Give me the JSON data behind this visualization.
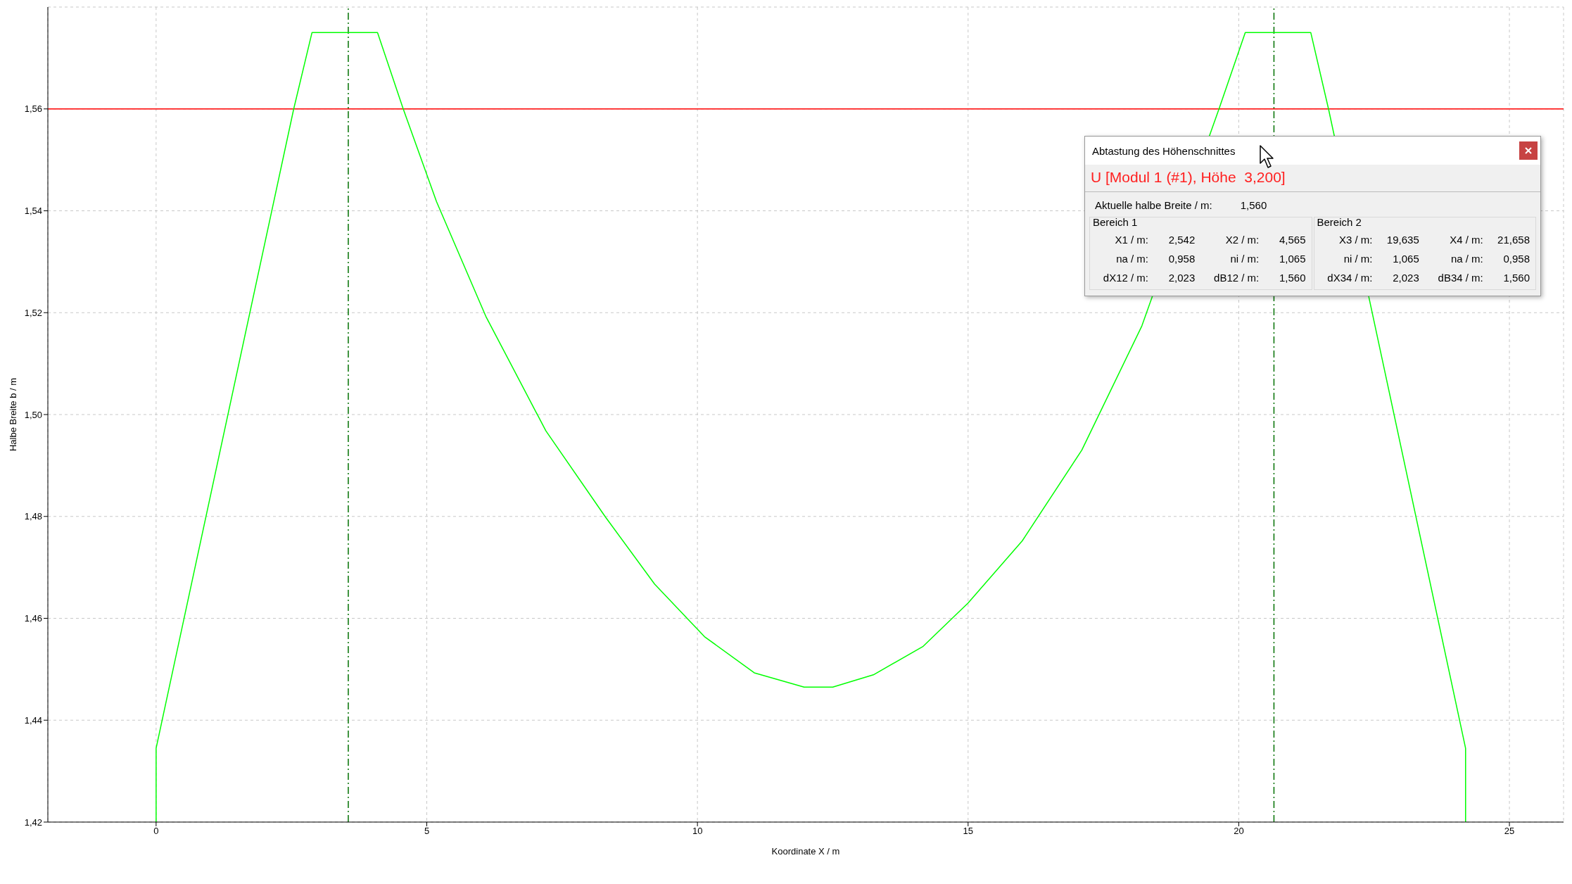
{
  "chart_data": {
    "type": "line",
    "xlabel": "Koordinate X / m",
    "ylabel": "Halbe Breite b / m",
    "xlim": [
      -2,
      26
    ],
    "xticks": [
      0,
      5,
      10,
      15,
      20,
      25
    ],
    "ylim": [
      1.42,
      1.58
    ],
    "yticks": [
      {
        "value": 1.42,
        "label": "1,42"
      },
      {
        "value": 1.44,
        "label": "1,44"
      },
      {
        "value": 1.46,
        "label": "1,46"
      },
      {
        "value": 1.48,
        "label": "1,48"
      },
      {
        "value": 1.5,
        "label": "1,50"
      },
      {
        "value": 1.52,
        "label": "1,52"
      },
      {
        "value": 1.54,
        "label": "1,54"
      },
      {
        "value": 1.56,
        "label": "1,56"
      }
    ],
    "grid": true,
    "marker": "none",
    "line_style": "solid",
    "series": [
      {
        "color": "#00ff00",
        "x": [
          0,
          0,
          2.542,
          2.88,
          4.09,
          4.565,
          5.18,
          6.09,
          7.2,
          8.3,
          9.21,
          10.13,
          11.05,
          11.97,
          12.5,
          13.25,
          14.17,
          15.0,
          16.0,
          17.1,
          18.21,
          19.635,
          20.12,
          21.33,
          21.658,
          24.19,
          24.19
        ],
        "values": [
          1.42,
          1.4345,
          1.56,
          1.575,
          1.575,
          1.56,
          1.5418,
          1.5193,
          1.4968,
          1.4799,
          1.4667,
          1.4564,
          1.4493,
          1.4465,
          1.4465,
          1.4489,
          1.4545,
          1.463,
          1.4752,
          1.493,
          1.5174,
          1.56,
          1.575,
          1.575,
          1.56,
          1.4345,
          1.42
        ]
      }
    ],
    "ref_lines": [
      {
        "axis": "y",
        "value": 1.56,
        "color": "#ff0000",
        "line_style": "solid"
      },
      {
        "axis": "x",
        "value": 3.55,
        "color": "#007000",
        "line_style": "dashed"
      },
      {
        "axis": "x",
        "value": 20.65,
        "color": "#007000",
        "line_style": "dashed"
      }
    ],
    "annotations": [
      "Abtastung des Höhenschnittes",
      "U [Modul 1 (#1), Höhe  3,200]",
      "Aktuelle halbe Breite / m:",
      "1,560",
      "Bereich 1",
      "Bereich 2",
      "X1 / m:",
      "2,542",
      "X2 / m:",
      "4,565",
      "X3 / m:",
      "19,635",
      "X4 / m:",
      "21,658",
      "na / m:",
      "0,958",
      "ni / m:",
      "1,065",
      "ni / m:",
      "1,065",
      "na / m:",
      "0,958",
      "dX12 / m:",
      "2,023",
      "dB12 / m:",
      "1,560",
      "dX34 / m:",
      "2,023",
      "dB34 / m:",
      "1,560"
    ]
  }
}
